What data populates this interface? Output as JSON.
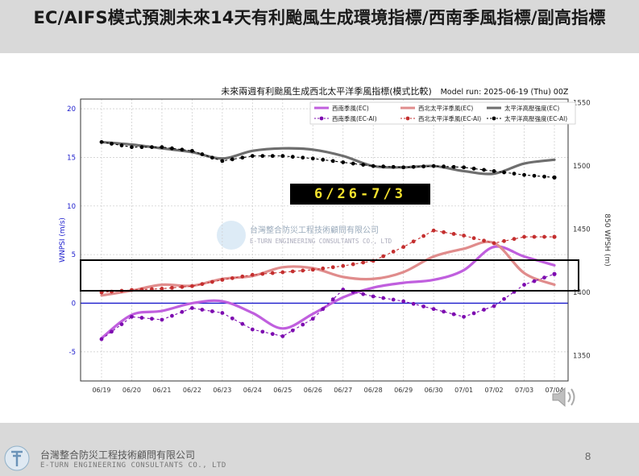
{
  "slide": {
    "title": "EC/AIFS模式預測未來14天有利颱風生成環境指標/西南季風指標/副高指標",
    "page_number": "8",
    "footer_company_zh": "台灣整合防災工程技術顧問有限公司",
    "footer_company_en": "E-TURN ENGINEERING CONSULTANTS CO., LTD",
    "banner_text": "6/26-7/3",
    "watermark_zh": "台灣整合防災工程技術顧問有限公司",
    "watermark_en": "E-TURN ENGINEERING CONSULTANTS CO., LTD"
  },
  "colors": {
    "sw_ec": "#c05fde",
    "sw_ai": "#7d0bb0",
    "nwp_ec": "#e08c8c",
    "nwp_ai": "#c42f2f",
    "high_ec": "#6e6e6e",
    "high_ai": "#000000",
    "left_axis": "#1a1acc",
    "zero_line": "#1a1acc",
    "banner_text": "#f5e22e"
  },
  "chart_data": {
    "type": "line",
    "title": "未來兩週有利颱風生成西北太平洋季風指標(模式比較)",
    "subtitle": "Model run: 2025-06-19 (Thu) 00Z",
    "ylabel": "WNPSI (m/s)",
    "y2label": "850 WPSH (m)",
    "ylim": [
      -8,
      21
    ],
    "y2lim": [
      1330,
      1553
    ],
    "yticks": [
      -5,
      0,
      5,
      10,
      15,
      20
    ],
    "y2ticks": [
      1350,
      1400,
      1450,
      1500,
      1550
    ],
    "categories": [
      "06/19",
      "06/20",
      "06/21",
      "06/22",
      "06/23",
      "06/24",
      "06/25",
      "06/26",
      "06/27",
      "06/28",
      "06/29",
      "06/30",
      "07/01",
      "07/02",
      "07/03",
      "07/04"
    ],
    "grid": true,
    "legend_position": "top-right",
    "series": [
      {
        "name": "西南季風(EC)",
        "axis": "left",
        "style": "line",
        "color_key": "sw_ec",
        "values": [
          -3.6,
          -1.2,
          -0.8,
          0.0,
          0.2,
          -1.0,
          -2.6,
          -1.1,
          0.6,
          1.6,
          2.1,
          2.4,
          3.4,
          5.8,
          4.8,
          3.9
        ]
      },
      {
        "name": "西北太平洋季風(EC)",
        "axis": "left",
        "style": "line",
        "color_key": "nwp_ec",
        "values": [
          0.8,
          1.3,
          1.9,
          1.8,
          2.5,
          2.8,
          3.7,
          3.6,
          2.7,
          2.5,
          3.2,
          4.8,
          5.6,
          6.2,
          3.1,
          1.9
        ]
      },
      {
        "name": "太平洋高壓強度(EC)",
        "axis": "right",
        "style": "line",
        "color_key": "high_ec",
        "values": [
          1519,
          1517,
          1514,
          1511,
          1506,
          1512,
          1514,
          1513,
          1508,
          1500,
          1499,
          1500,
          1496,
          1494,
          1502,
          1505
        ]
      },
      {
        "name": "西南季風(EC-AI)",
        "axis": "left",
        "style": "dotted",
        "color_key": "sw_ai",
        "values": [
          -3.7,
          -1.4,
          -1.7,
          -0.5,
          -1.0,
          -2.7,
          -3.4,
          -1.6,
          1.4,
          0.7,
          0.2,
          -0.6,
          -1.4,
          -0.3,
          1.9,
          3.0
        ]
      },
      {
        "name": "西北太平洋季風(EC-AI)",
        "axis": "right",
        "style": "dotted",
        "color_key": "nwp_ai",
        "values": [
          1400,
          1402,
          1403,
          1405,
          1410,
          1414,
          1416,
          1418,
          1421,
          1425,
          1436,
          1449,
          1445,
          1439,
          1444,
          1444
        ]
      },
      {
        "name": "太平洋高壓強度(EC-AI)",
        "axis": "right",
        "style": "dotted",
        "color_key": "high_ai",
        "values": [
          1519,
          1515,
          1515,
          1512,
          1504,
          1508,
          1508,
          1506,
          1503,
          1500,
          1499,
          1500,
          1499,
          1496,
          1493,
          1491
        ]
      }
    ]
  }
}
